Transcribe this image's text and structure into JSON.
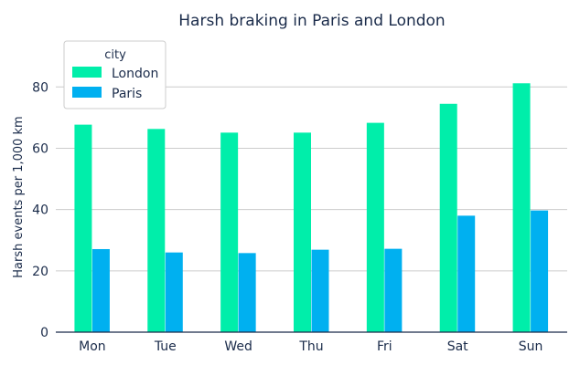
{
  "chart_data": {
    "type": "bar",
    "title": "Harsh braking in Paris and London",
    "xlabel": "",
    "ylabel": "Harsh events per 1,000 km",
    "categories": [
      "Mon",
      "Tue",
      "Wed",
      "Thu",
      "Fri",
      "Sat",
      "Sun"
    ],
    "ylim": [
      0,
      92
    ],
    "yticks": [
      0,
      20,
      40,
      60,
      80
    ],
    "grid": true,
    "legend": {
      "title": "city",
      "placement": "top-left"
    },
    "series": [
      {
        "name": "London",
        "color": "#00eeaa",
        "values": [
          67.7,
          66.3,
          65.1,
          65.1,
          68.3,
          74.5,
          81.2
        ]
      },
      {
        "name": "Paris",
        "color": "#00b0f0",
        "values": [
          27.1,
          26.0,
          25.8,
          26.9,
          27.2,
          38.0,
          39.7
        ]
      }
    ]
  }
}
